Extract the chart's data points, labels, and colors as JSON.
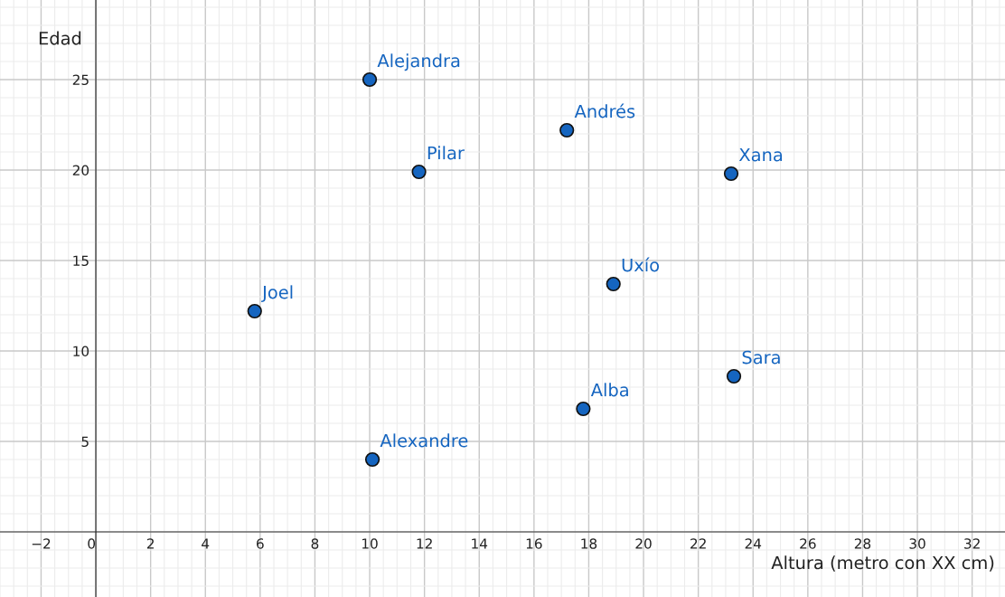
{
  "chart_data": {
    "type": "scatter",
    "xlabel": "Altura (metro con XX cm)",
    "ylabel": "Edad",
    "x": [
      10,
      11.8,
      17.2,
      23.2,
      5.8,
      18.9,
      23.3,
      17.8,
      10.1
    ],
    "values": [
      25,
      19.9,
      22.2,
      19.8,
      12.2,
      13.7,
      8.6,
      6.8,
      4
    ],
    "color": "#1565c0",
    "marker": "circle",
    "grid": true,
    "xlim": [
      -3.5,
      33.2
    ],
    "ylim": [
      -3.6,
      29.4
    ],
    "xticks": [
      -2,
      0,
      2,
      4,
      6,
      8,
      10,
      12,
      14,
      16,
      18,
      20,
      22,
      24,
      26,
      28,
      30,
      32
    ],
    "yticks": [
      5,
      10,
      15,
      20,
      25
    ],
    "annotations": [
      {
        "text": "Alejandra",
        "x": 10,
        "y": 25
      },
      {
        "text": "Pilar",
        "x": 11.8,
        "y": 19.9
      },
      {
        "text": "Andrés",
        "x": 17.2,
        "y": 22.2
      },
      {
        "text": "Xana",
        "x": 23.2,
        "y": 19.8
      },
      {
        "text": "Joel",
        "x": 5.8,
        "y": 12.2
      },
      {
        "text": "Uxío",
        "x": 18.9,
        "y": 13.7
      },
      {
        "text": "Sara",
        "x": 23.3,
        "y": 8.6
      },
      {
        "text": "Alba",
        "x": 17.8,
        "y": 6.8
      },
      {
        "text": "Alexandre",
        "x": 10.1,
        "y": 4
      }
    ]
  }
}
